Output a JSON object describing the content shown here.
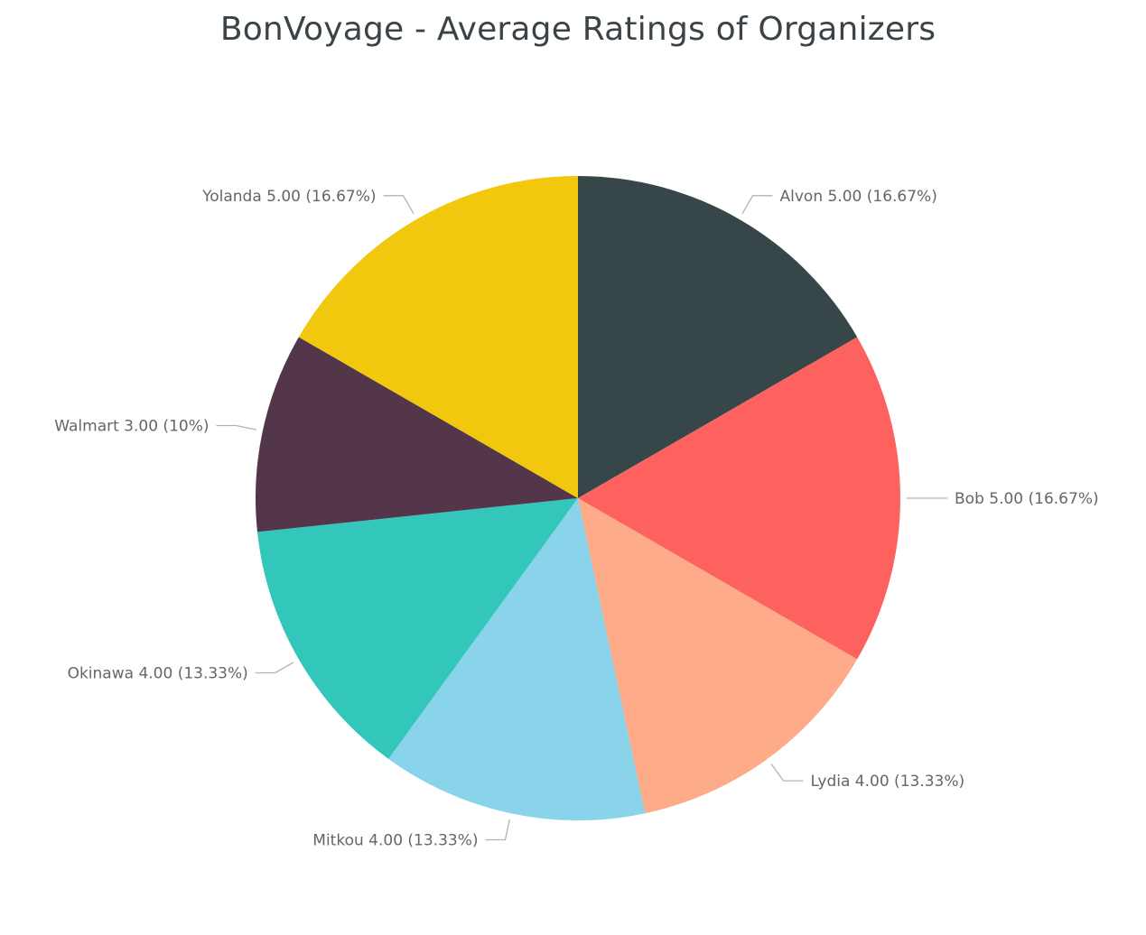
{
  "chart_data": {
    "type": "pie",
    "title": "BonVoyage - Average Ratings of Organizers",
    "slices": [
      {
        "name": "Alvon",
        "value": 5.0,
        "value_label": "5.00",
        "percent_label": "16.67%",
        "color": "#374649"
      },
      {
        "name": "Bob",
        "value": 5.0,
        "value_label": "5.00",
        "percent_label": "16.67%",
        "color": "#FD625E"
      },
      {
        "name": "Lydia",
        "value": 4.0,
        "value_label": "4.00",
        "percent_label": "13.33%",
        "color": "#FDAB89"
      },
      {
        "name": "Mitkou",
        "value": 4.0,
        "value_label": "4.00",
        "percent_label": "13.33%",
        "color": "#8AD4EB"
      },
      {
        "name": "Okinawa",
        "value": 4.0,
        "value_label": "4.00",
        "percent_label": "13.33%",
        "color": "#33C6BB"
      },
      {
        "name": "Walmart",
        "value": 3.0,
        "value_label": "3.00",
        "percent_label": "10%",
        "color": "#533649"
      },
      {
        "name": "Yolanda",
        "value": 5.0,
        "value_label": "5.00",
        "percent_label": "16.67%",
        "color": "#F2C80F"
      }
    ],
    "start": "top",
    "direction": "clockwise",
    "labels": "outside-with-leader-lines",
    "legend": "none"
  }
}
